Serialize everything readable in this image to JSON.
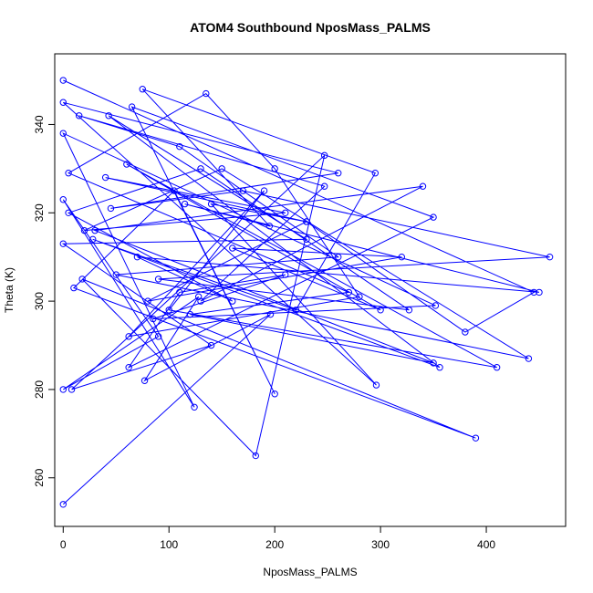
{
  "chart_data": {
    "type": "line",
    "title": "ATOM4 Southbound NposMass_PALMS",
    "xlabel": "NposMass_PALMS",
    "ylabel": "Theta (K)",
    "xlim": [
      -8,
      475
    ],
    "ylim": [
      249,
      356
    ],
    "xticks": [
      0,
      100,
      200,
      300,
      400
    ],
    "yticks": [
      260,
      280,
      300,
      320,
      340
    ],
    "grid": false,
    "color": "#0000ff",
    "marker": "open-circle",
    "series": [
      {
        "x": [
          0,
          445,
          380,
          230,
          40,
          210,
          20,
          150,
          440,
          50,
          260,
          110,
          15,
          247,
          130,
          340,
          30,
          350,
          120,
          270,
          5,
          135,
          200,
          280,
          62,
          190,
          100,
          410,
          60,
          300,
          160,
          320,
          80,
          230,
          140,
          296,
          0,
          260,
          45,
          170,
          460,
          90,
          327,
          130,
          5,
          160,
          70,
          450,
          115,
          195,
          75,
          295,
          220,
          28,
          356,
          43,
          230,
          0,
          140,
          8,
          247,
          182,
          18,
          390,
          10,
          105,
          200,
          65,
          350,
          62,
          110,
          210,
          85,
          352,
          0,
          124,
          0,
          90,
          0,
          128,
          77,
          196,
          0
        ],
        "y": [
          350,
          302,
          293,
          318,
          328,
          320,
          316,
          330,
          287,
          306,
          310,
          335,
          342,
          326,
          300,
          326,
          316,
          286,
          297,
          302,
          329,
          347,
          330,
          301,
          292,
          325,
          298,
          285,
          331,
          298,
          312,
          310,
          300,
          318,
          322,
          281,
          345,
          329,
          321,
          325,
          310,
          305,
          298,
          330,
          320,
          300,
          310,
          302,
          322,
          317,
          348,
          329,
          298,
          314,
          285,
          342,
          314,
          313,
          290,
          280,
          333,
          265,
          305,
          269,
          303,
          325,
          279,
          344,
          319,
          285,
          302,
          306,
          296,
          299,
          338,
          276,
          323,
          292,
          280,
          301,
          282,
          297,
          254
        ]
      }
    ]
  }
}
